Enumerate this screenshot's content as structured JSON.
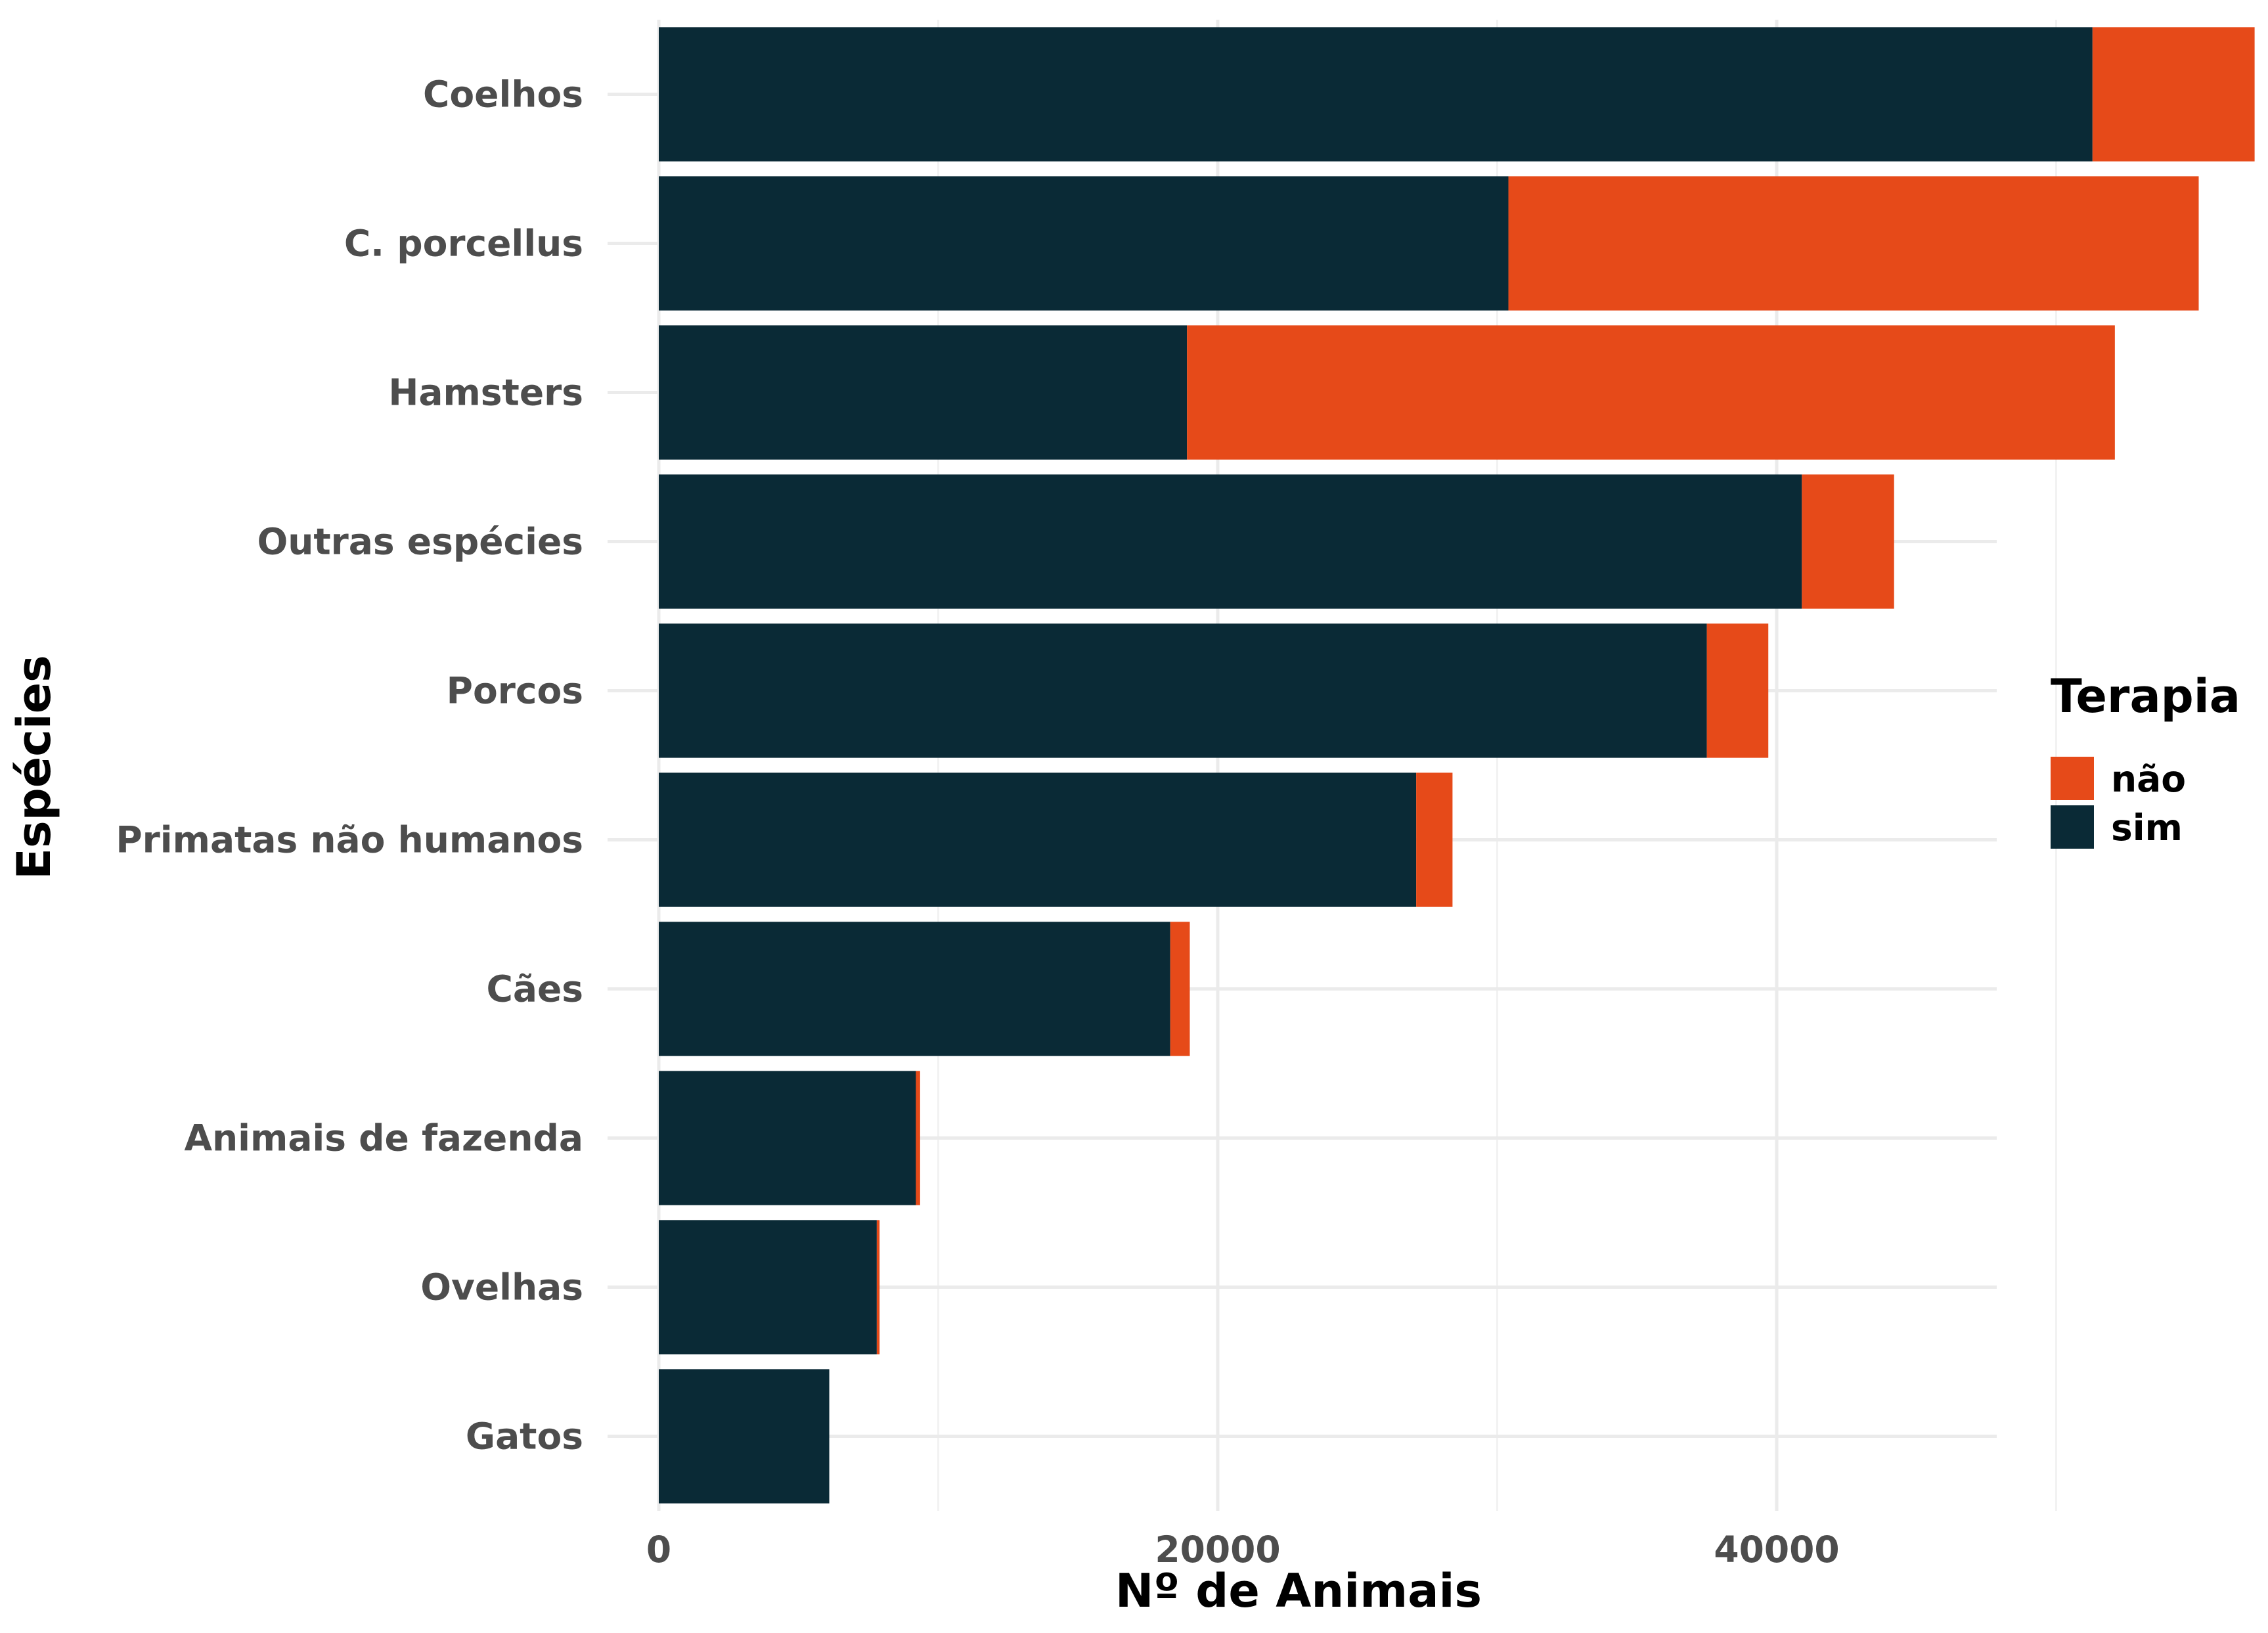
{
  "chart_data": {
    "type": "bar",
    "orientation": "horizontal",
    "stacked": true,
    "xlabel": "Nº de Animais",
    "ylabel": "Espécies",
    "xlim": [
      0,
      60000
    ],
    "x_ticks": [
      0,
      20000,
      40000
    ],
    "x_tick_labels": [
      "0",
      "20000",
      "40000"
    ],
    "categories": [
      "Coelhos",
      "C. porcellus",
      "Hamsters",
      "Outras espécies",
      "Porcos",
      "Primatas não humanos",
      "Cães",
      "Animais de fazenda",
      "Ovelhas",
      "Gatos"
    ],
    "series": [
      {
        "name": "sim",
        "color": "#0a2a36",
        "values": [
          51300,
          30400,
          18900,
          40900,
          37500,
          27100,
          18300,
          9200,
          7800,
          6100
        ]
      },
      {
        "name": "não",
        "color": "#e64a19",
        "values": [
          5800,
          24700,
          33200,
          3300,
          2200,
          1300,
          700,
          150,
          100,
          0
        ]
      }
    ],
    "legend": {
      "title": "Terapia",
      "position": "right",
      "entries": [
        "não",
        "sim"
      ]
    },
    "grid": true
  }
}
